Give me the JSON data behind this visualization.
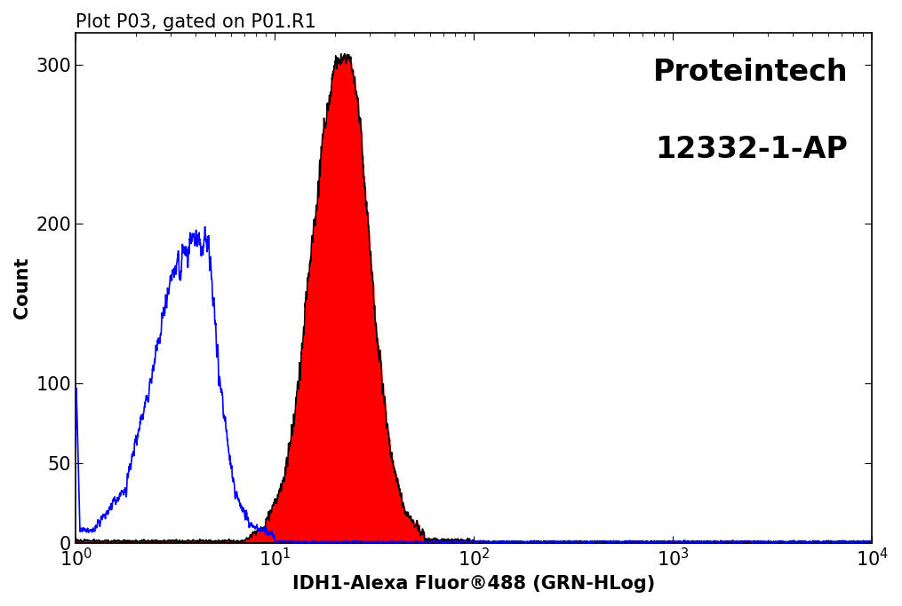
{
  "title": "Plot P03, gated on P01.R1",
  "xlabel": "IDH1-Alexa Fluor®488 (GRN-HLog)",
  "ylabel": "Count",
  "brand_line1": "Proteintech",
  "brand_line2": "12332-1-AP",
  "xmin": 1.0,
  "xmax": 10000.0,
  "ymin": 0,
  "ymax": 320,
  "yticks": [
    0,
    50,
    100,
    200,
    300
  ],
  "blue_color": "#0000ff",
  "red_color": "#ff0000",
  "black_color": "#000000",
  "background_color": "#ffffff",
  "title_fontsize": 15,
  "label_fontsize": 15,
  "tick_fontsize": 15,
  "brand_fontsize": 24
}
